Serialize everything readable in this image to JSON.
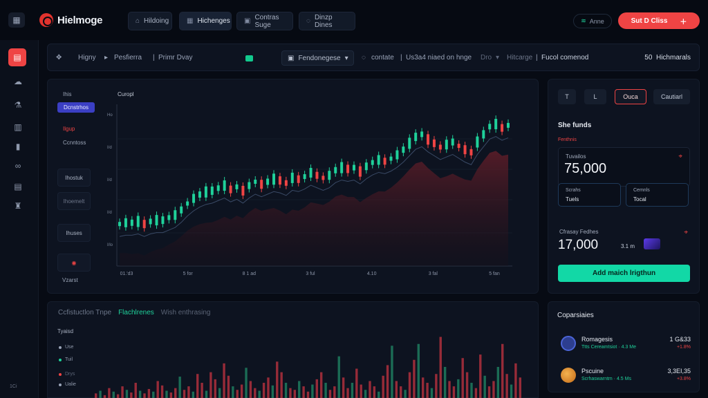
{
  "header": {
    "logo_text": "Hielmoge",
    "tabs": [
      {
        "label": "Hildoing",
        "icon": "⌂"
      },
      {
        "label": "Hichenges",
        "icon": "▦"
      },
      {
        "label": "Contras Suge",
        "icon": "▣"
      },
      {
        "label": "Dinzp Dines",
        "icon": "◌"
      }
    ],
    "user_chip": {
      "icon": "≋",
      "label": "Anne"
    },
    "cta": {
      "label": "Sut D Cliss",
      "icon": "＋"
    }
  },
  "sidebar": {
    "items": [
      {
        "name": "sidebar-item-dashboard",
        "icon": "▤"
      },
      {
        "name": "sidebar-item-cloud",
        "icon": "☁"
      },
      {
        "name": "sidebar-item-tools",
        "icon": "⚗"
      },
      {
        "name": "sidebar-item-docs",
        "icon": "▥"
      },
      {
        "name": "sidebar-item-files",
        "icon": "▮"
      },
      {
        "name": "sidebar-item-link",
        "icon": "∞"
      },
      {
        "name": "sidebar-item-print",
        "icon": "▤"
      },
      {
        "name": "sidebar-item-user",
        "icon": "♜"
      }
    ]
  },
  "toolbar": {
    "items": [
      "Higny",
      "Pesfierra",
      "Primr Dvay"
    ],
    "dropdown": "Fendonegese",
    "search_hint": "contate",
    "breadcrumb": "Us3a4 niaed on hnge",
    "extra1": "Dro",
    "extra2": "Hitcarge",
    "extra3": "Fucol comenod",
    "right_label": "Hichmarals",
    "right_icon": "50"
  },
  "chart": {
    "title": "Curopl",
    "side_label": "Ihis",
    "active_timeframe": "Dcnstrhos",
    "timeframes": [
      "Ilgup",
      "Ccnntoss"
    ],
    "boxes": [
      "Ihostuk",
      "Ihoemelt",
      "Ihuses"
    ],
    "footer_label": "Vzarst"
  },
  "chart_data": {
    "type": "line",
    "title": "Curopl",
    "x_tick_labels": [
      "01.'d3",
      "5 for",
      "8 1 ad",
      "3 ful",
      "4.10",
      "3 fal",
      "5 fan"
    ],
    "y_tick_labels": [
      "Ho",
      "I/d",
      "I/d",
      "I/d",
      "I/lo"
    ],
    "series": [
      {
        "values": [
          22,
          23,
          23,
          24,
          22,
          24,
          25,
          25,
          27,
          29,
          33,
          38,
          42,
          45,
          47,
          48,
          50,
          52,
          49,
          51,
          48,
          52,
          55,
          53,
          55,
          57,
          56,
          54,
          58,
          57,
          59,
          62,
          60,
          58,
          60,
          64,
          66,
          65,
          66,
          63,
          67,
          70,
          72,
          71,
          73,
          76,
          80,
          85,
          90,
          92,
          88,
          85,
          82,
          84,
          86,
          83,
          80,
          78,
          86,
          92,
          98,
          100,
          97,
          99
        ]
      }
    ]
  },
  "side_card": {
    "tabs": [
      "T",
      "L",
      "Ouca",
      "Cautiarl"
    ],
    "title": "She funds",
    "subtitle": "Fenthnis",
    "main_label": "Tuvailos",
    "main_value": "75,000",
    "mini_1": {
      "label": "Scrahs",
      "value": "Tuels"
    },
    "mini_2": {
      "label": "Cemnls",
      "value": "Tocal"
    },
    "second_label": "Cfrasay Fedhes",
    "second_value": "17,000",
    "second_small": "3.1 m",
    "icon": "⌖",
    "add_button": "Add maich lrigthun"
  },
  "volume": {
    "tabs": [
      "Ccfistuctlon Tnpe",
      "Flachlrenes",
      "Wish enthrasing"
    ],
    "label": "Tyaisd",
    "legend": [
      {
        "label": "Use",
        "color": "#9aa4b8"
      },
      {
        "label": "Tuil",
        "color": "#1fd19a"
      },
      {
        "label": "Drys",
        "color": "#ef4444"
      },
      {
        "label": "Ualie",
        "color": "#9aa4b8"
      }
    ],
    "bars": [
      6,
      9,
      4,
      12,
      8,
      5,
      14,
      10,
      7,
      18,
      9,
      6,
      11,
      8,
      20,
      15,
      9,
      7,
      12,
      25,
      10,
      14,
      8,
      28,
      18,
      9,
      30,
      22,
      12,
      40,
      26,
      14,
      10,
      16,
      35,
      20,
      12,
      9,
      18,
      24,
      15,
      42,
      30,
      18,
      12,
      10,
      20,
      14,
      8,
      16,
      22,
      30,
      18,
      10,
      14,
      48,
      24,
      12,
      18,
      34,
      16,
      10,
      20,
      14,
      8,
      26,
      38,
      60,
      20,
      14,
      10,
      30,
      44,
      62,
      24,
      18,
      12,
      28,
      70,
      36,
      20,
      14,
      22,
      46,
      30,
      18,
      12,
      50,
      26,
      14,
      20,
      36,
      62,
      28,
      16,
      40,
      24
    ]
  },
  "companies": {
    "title": "Coparsiaies",
    "items": [
      {
        "name": "Romagesis",
        "sub": "Ttts Cereamtsiot · 4.3 Me",
        "value": "1 G&33",
        "change": "+1.8%",
        "logo_color": "#2d3e8f"
      },
      {
        "name": "Pscuine",
        "sub": "Scrhaswarntm · 4.5 Ms",
        "value": "3,3EI,35",
        "change": "+3.8%",
        "logo_color": "#e08a2e"
      }
    ]
  },
  "corner": "1Ci",
  "colors": {
    "accent_red": "#ef4444",
    "accent_green": "#12d8a6",
    "candle_up": "#1fd19a",
    "candle_down": "#ef4444"
  }
}
